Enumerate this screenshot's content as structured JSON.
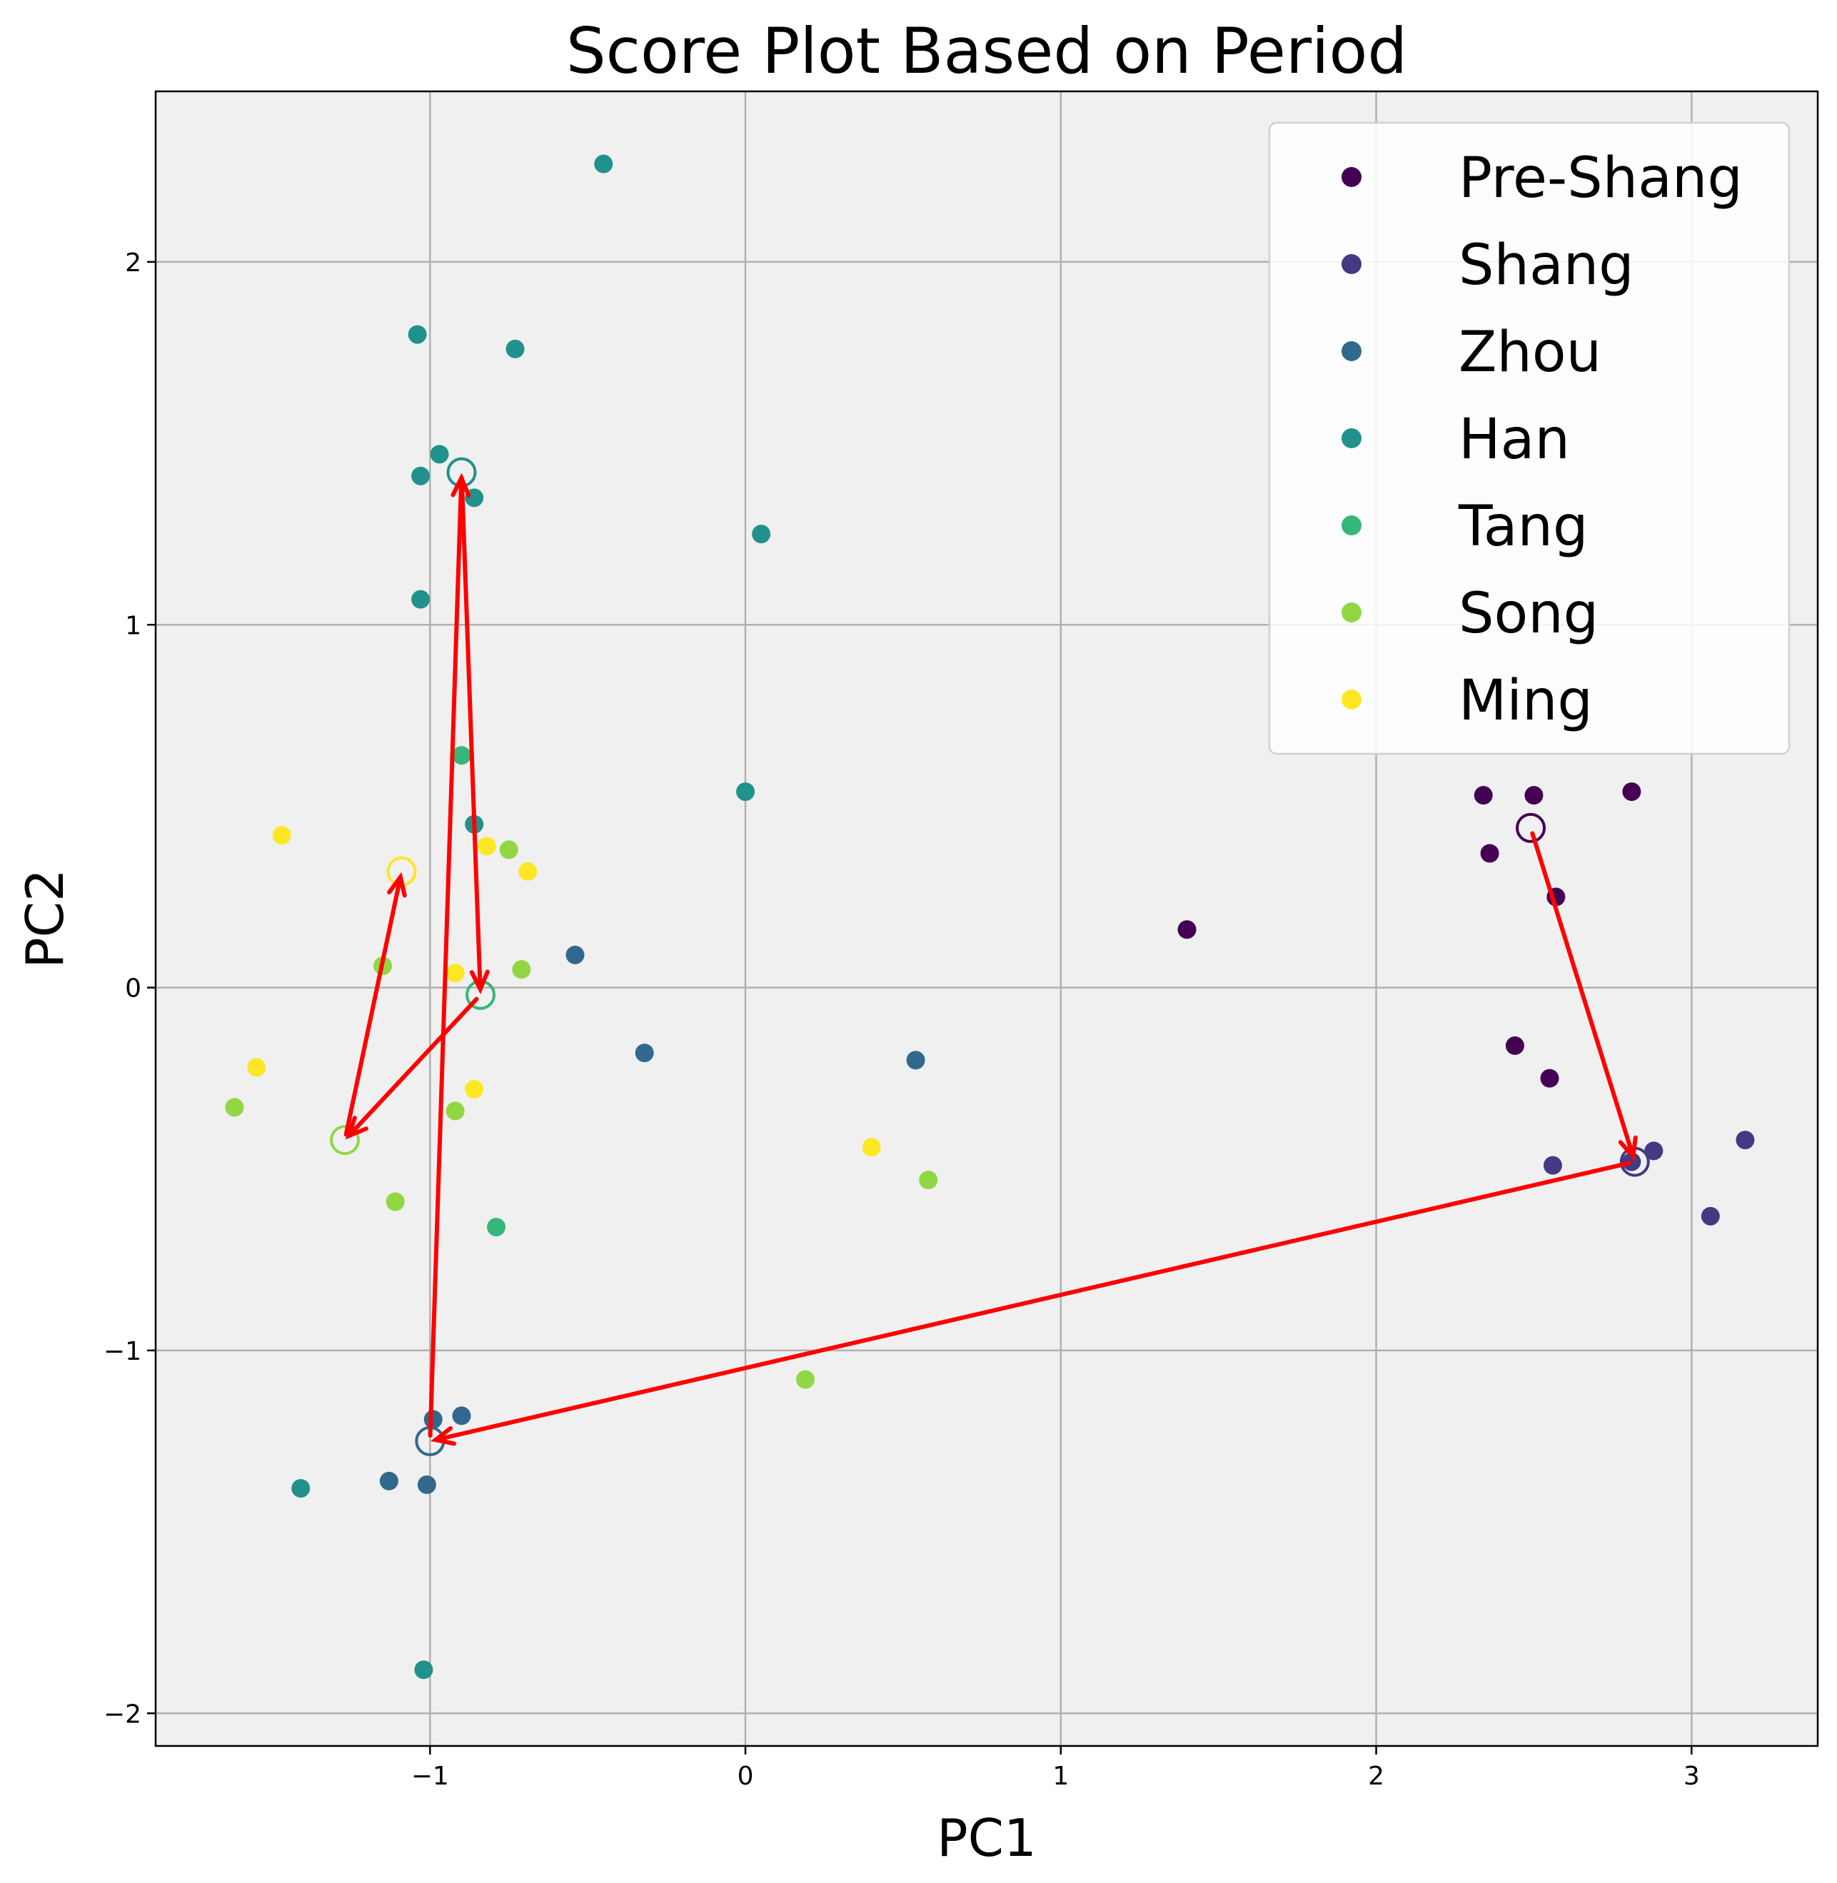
{
  "chart_data": {
    "type": "scatter",
    "title": "Score Plot Based on Period",
    "xlabel": "PC1",
    "ylabel": "PC2",
    "xlim": [
      -1.87,
      3.4
    ],
    "ylim": [
      -2.09,
      2.47
    ],
    "xticks": [
      -1,
      0,
      1,
      2,
      3
    ],
    "yticks": [
      -2,
      -1,
      0,
      1,
      2
    ],
    "xtick_labels": [
      "−1",
      "0",
      "1",
      "2",
      "3"
    ],
    "ytick_labels": [
      "−2",
      "−1",
      "0",
      "1",
      "2"
    ],
    "grid": true,
    "legend_position": "top-right",
    "colors": {
      "Pre-Shang": "#440154",
      "Shang": "#443983",
      "Zhou": "#31688e",
      "Han": "#21918c",
      "Tang": "#35b779",
      "Song": "#90d743",
      "Ming": "#fde725",
      "arrow": "#ff0000",
      "background": "#f0f0f0",
      "grid": "#b0b0b0"
    },
    "series": [
      {
        "name": "Pre-Shang",
        "points": [
          [
            2.34,
            0.53
          ],
          [
            2.5,
            0.53
          ],
          [
            2.81,
            0.54
          ],
          [
            2.36,
            0.37
          ],
          [
            1.4,
            0.16
          ],
          [
            2.57,
            0.25
          ],
          [
            2.44,
            -0.16
          ],
          [
            2.55,
            -0.25
          ]
        ]
      },
      {
        "name": "Shang",
        "points": [
          [
            2.56,
            -0.49
          ],
          [
            2.88,
            -0.45
          ],
          [
            3.17,
            -0.42
          ],
          [
            3.06,
            -0.63
          ],
          [
            2.81,
            -0.48
          ]
        ]
      },
      {
        "name": "Zhou",
        "points": [
          [
            -0.54,
            0.09
          ],
          [
            -0.32,
            -0.18
          ],
          [
            0.54,
            -0.2
          ],
          [
            -0.99,
            -1.19
          ],
          [
            -0.9,
            -1.18
          ],
          [
            -1.13,
            -1.36
          ],
          [
            -1.01,
            -1.37
          ]
        ]
      },
      {
        "name": "Han",
        "points": [
          [
            -0.45,
            2.27
          ],
          [
            -1.04,
            1.8
          ],
          [
            -0.73,
            1.76
          ],
          [
            -0.97,
            1.47
          ],
          [
            -1.03,
            1.41
          ],
          [
            -0.86,
            1.35
          ],
          [
            0.05,
            1.25
          ],
          [
            -1.03,
            1.07
          ],
          [
            0.0,
            0.54
          ],
          [
            -0.86,
            0.45
          ],
          [
            -1.41,
            -1.38
          ],
          [
            -1.02,
            -1.88
          ]
        ]
      },
      {
        "name": "Tang",
        "points": [
          [
            -0.9,
            0.64
          ],
          [
            -0.79,
            -0.66
          ]
        ]
      },
      {
        "name": "Song",
        "points": [
          [
            -0.75,
            0.38
          ],
          [
            -1.15,
            0.06
          ],
          [
            -0.71,
            0.05
          ],
          [
            -1.62,
            -0.33
          ],
          [
            -0.92,
            -0.34
          ],
          [
            -1.11,
            -0.59
          ],
          [
            0.58,
            -0.53
          ],
          [
            0.19,
            -1.08
          ]
        ]
      },
      {
        "name": "Ming",
        "points": [
          [
            -1.47,
            0.42
          ],
          [
            -0.82,
            0.39
          ],
          [
            -0.69,
            0.32
          ],
          [
            -0.92,
            0.04
          ],
          [
            -1.55,
            -0.22
          ],
          [
            -0.86,
            -0.28
          ],
          [
            0.4,
            -0.44
          ]
        ]
      }
    ],
    "centroids": [
      {
        "name": "Pre-Shang",
        "x": 2.49,
        "y": 0.44
      },
      {
        "name": "Shang",
        "x": 2.82,
        "y": -0.48
      },
      {
        "name": "Zhou",
        "x": -1.0,
        "y": -1.25
      },
      {
        "name": "Han",
        "x": -0.9,
        "y": 1.42
      },
      {
        "name": "Tang",
        "x": -0.84,
        "y": -0.02
      },
      {
        "name": "Song",
        "x": -1.27,
        "y": -0.42
      },
      {
        "name": "Ming",
        "x": -1.09,
        "y": 0.32
      }
    ],
    "arrows": [
      {
        "from": "Pre-Shang",
        "to": "Shang"
      },
      {
        "from": "Shang",
        "to": "Zhou"
      },
      {
        "from": "Zhou",
        "to": "Han"
      },
      {
        "from": "Han",
        "to": "Tang"
      },
      {
        "from": "Tang",
        "to": "Song"
      },
      {
        "from": "Song",
        "to": "Ming"
      }
    ]
  }
}
